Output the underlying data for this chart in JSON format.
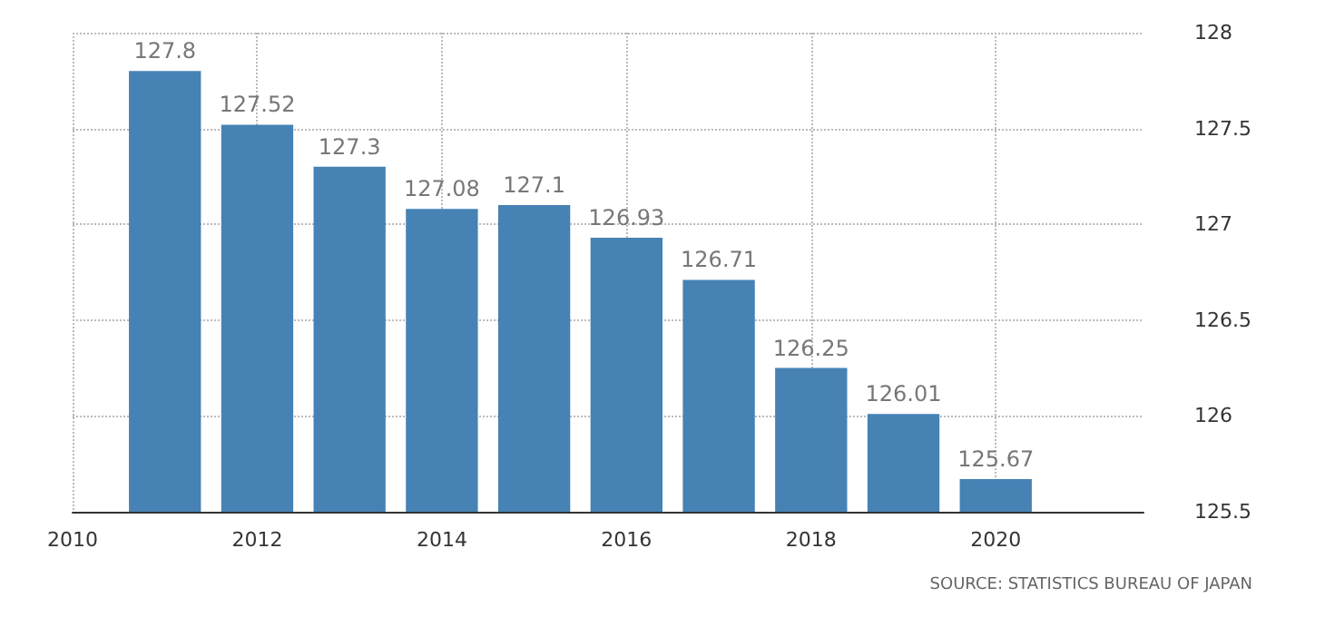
{
  "chart_data": {
    "type": "bar",
    "x": [
      2011,
      2012,
      2013,
      2014,
      2015,
      2016,
      2017,
      2018,
      2019,
      2020
    ],
    "values": [
      127.8,
      127.52,
      127.3,
      127.08,
      127.1,
      126.93,
      126.71,
      126.25,
      126.01,
      125.67
    ],
    "color": "#4682b4",
    "xlim": [
      2010,
      2021.6
    ],
    "xticks": [
      2010,
      2012,
      2014,
      2016,
      2018,
      2020
    ],
    "ylim": [
      125.5,
      128
    ],
    "yticks": [
      125.5,
      126,
      126.5,
      127,
      127.5,
      128
    ],
    "grid": true,
    "data_labels": true,
    "annotations": [
      "SOURCE: STATISTICS BUREAU OF JAPAN"
    ]
  }
}
